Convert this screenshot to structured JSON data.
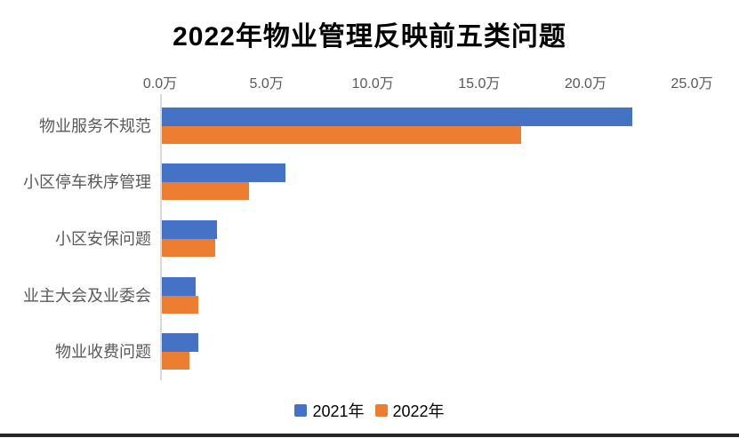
{
  "chart_data": {
    "type": "bar",
    "orientation": "horizontal",
    "title": "2022年物业管理反映前五类问题",
    "categories": [
      "物业服务不规范",
      "小区停车秩序管理",
      "小区安保问题",
      "业主大会及业委会",
      "物业收费问题"
    ],
    "series": [
      {
        "name": "2021年",
        "color": "#4472C4",
        "values": [
          22.1,
          5.8,
          2.6,
          1.6,
          1.7
        ]
      },
      {
        "name": "2022年",
        "color": "#ED7D31",
        "values": [
          16.9,
          4.1,
          2.5,
          1.7,
          1.3
        ]
      }
    ],
    "unit": "万",
    "x_axis": {
      "position": "top",
      "min": 0,
      "max": 25,
      "tick_values": [
        0,
        5,
        10,
        15,
        20,
        25
      ],
      "ticks": [
        "0.0万",
        "5.0万",
        "10.0万",
        "15.0万",
        "20.0万",
        "25.0万"
      ]
    },
    "legend": {
      "position": "bottom",
      "entries": [
        "2021年",
        "2022年"
      ]
    },
    "grid": false
  },
  "colors": {
    "title_text": "#000000",
    "axis_tick_text": "#595959",
    "category_text": "#595959",
    "axis_line": "#D9D9D9",
    "legend_text": "#000000",
    "bottom_border": "#262626",
    "series_2021": "#4472C4",
    "series_2022": "#ED7D31"
  }
}
